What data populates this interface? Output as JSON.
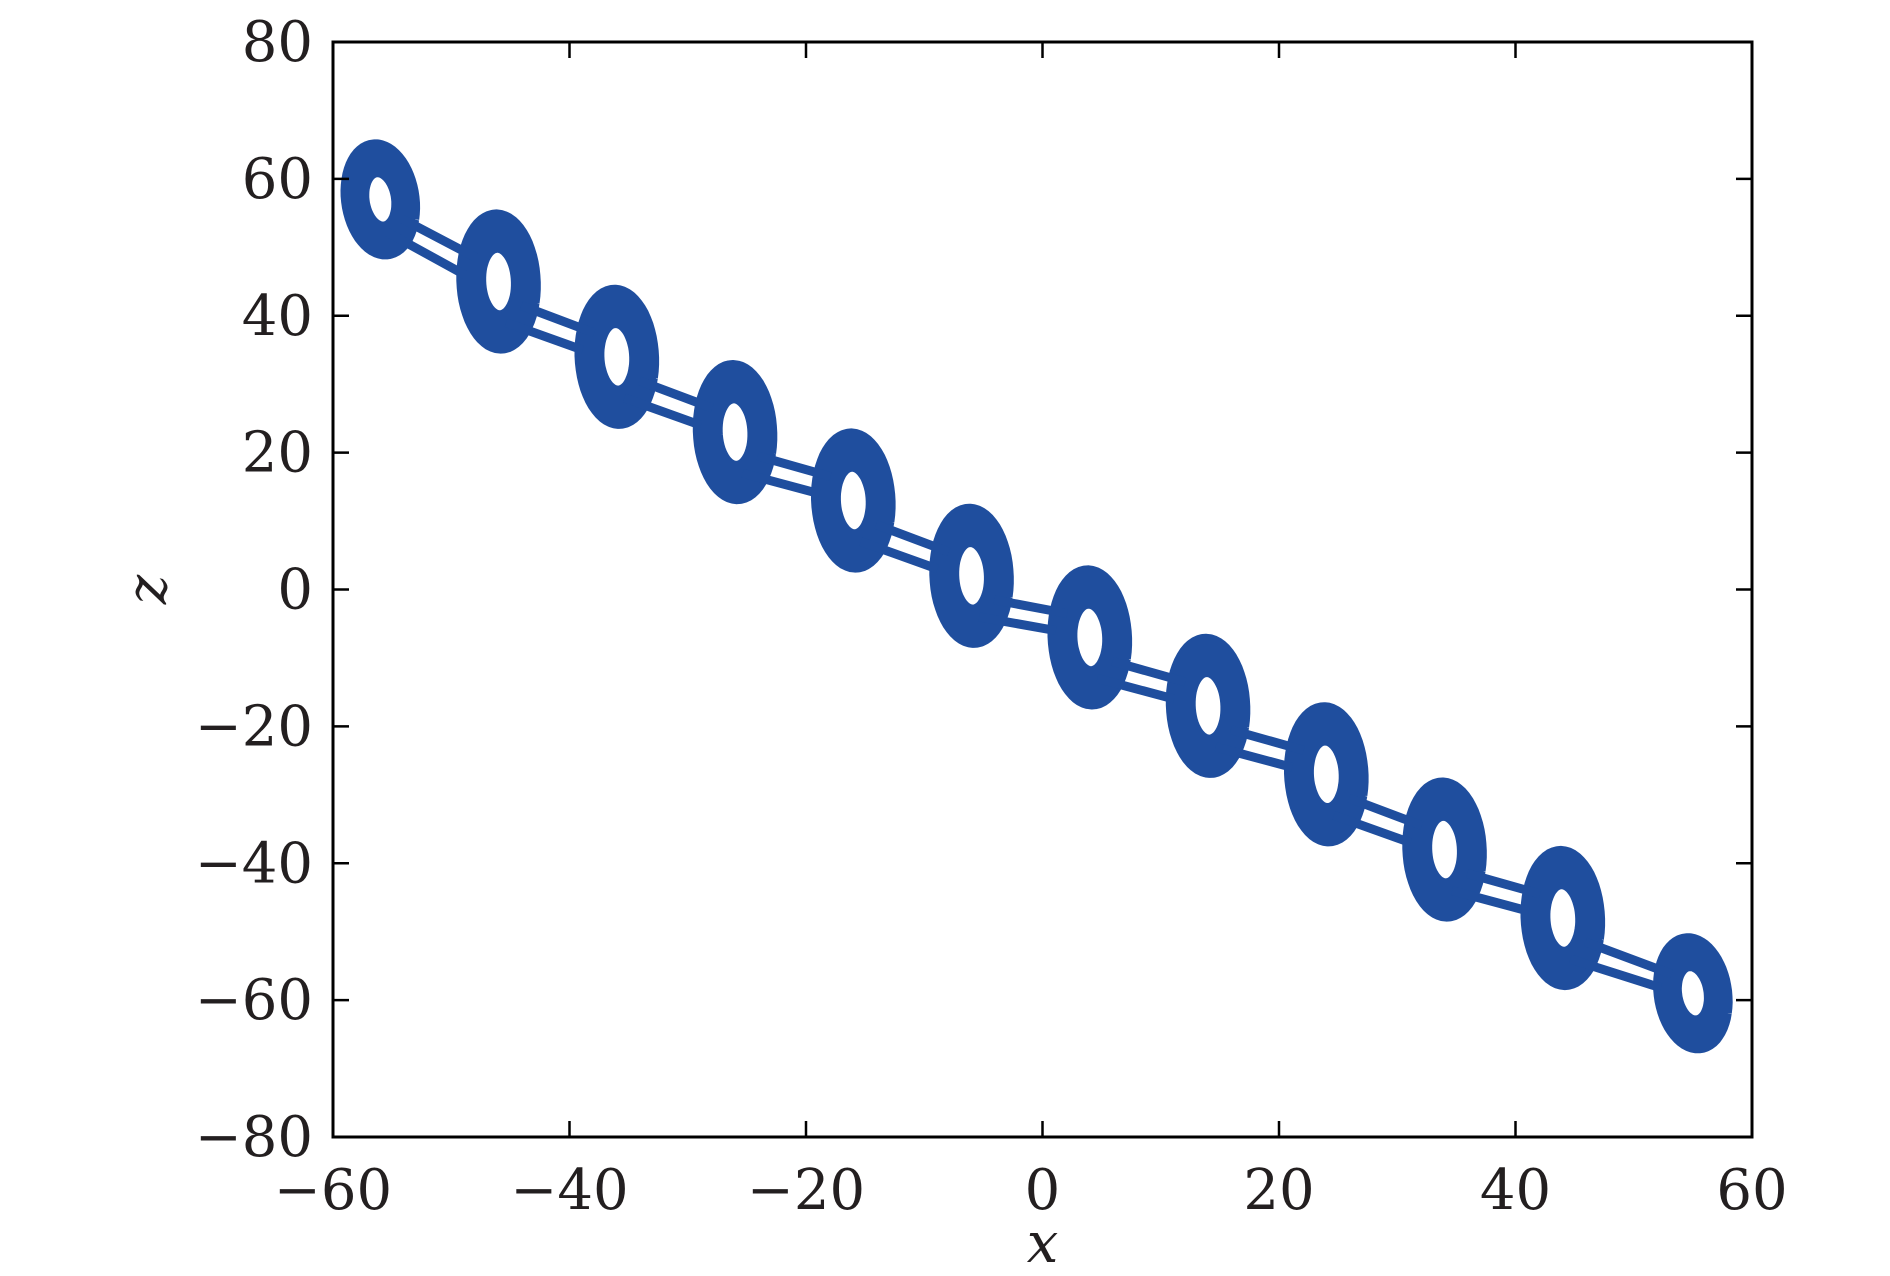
{
  "chart_data": {
    "type": "line",
    "xlabel": "x",
    "ylabel": "z",
    "xlim": [
      -60,
      60
    ],
    "ylim": [
      -80,
      80
    ],
    "xticks": [
      -60,
      -40,
      -20,
      0,
      20,
      40,
      60
    ],
    "yticks": [
      -80,
      -60,
      -40,
      -20,
      0,
      20,
      40,
      60,
      80
    ],
    "xtick_labels": [
      "−60",
      "−40",
      "−20",
      "0",
      "20",
      "40",
      "60"
    ],
    "ytick_labels": [
      "−80",
      "−60",
      "−40",
      "−20",
      "0",
      "20",
      "40",
      "60",
      "80"
    ],
    "grid": false,
    "color": "#1f4e9e",
    "loops": [
      {
        "cx": -56,
        "cz": 57,
        "rx": 3.0,
        "rz": 8,
        "rounds": 5
      },
      {
        "cx": -46,
        "cz": 45,
        "rx": 3.2,
        "rz": 10,
        "rounds": 10
      },
      {
        "cx": -36,
        "cz": 34,
        "rx": 3.2,
        "rz": 10,
        "rounds": 10
      },
      {
        "cx": -26,
        "cz": 23,
        "rx": 3.2,
        "rz": 10,
        "rounds": 10
      },
      {
        "cx": -16,
        "cz": 13,
        "rx": 3.2,
        "rz": 10,
        "rounds": 10
      },
      {
        "cx": -6,
        "cz": 2,
        "rx": 3.2,
        "rz": 10,
        "rounds": 10
      },
      {
        "cx": 4,
        "cz": -7,
        "rx": 3.2,
        "rz": 10,
        "rounds": 10
      },
      {
        "cx": 14,
        "cz": -17,
        "rx": 3.2,
        "rz": 10,
        "rounds": 10
      },
      {
        "cx": 24,
        "cz": -27,
        "rx": 3.2,
        "rz": 10,
        "rounds": 10
      },
      {
        "cx": 34,
        "cz": -38,
        "rx": 3.2,
        "rz": 10,
        "rounds": 10
      },
      {
        "cx": 44,
        "cz": -48,
        "rx": 3.2,
        "rz": 10,
        "rounds": 10
      },
      {
        "cx": 55,
        "cz": -59,
        "rx": 3.0,
        "rz": 8,
        "rounds": 5
      }
    ]
  }
}
